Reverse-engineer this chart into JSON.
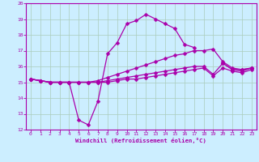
{
  "background_color": "#cceeff",
  "grid_color": "#aaccbb",
  "line_color": "#aa00aa",
  "xlabel": "Windchill (Refroidissement éolien,°C)",
  "xlim": [
    -0.5,
    23.5
  ],
  "ylim": [
    12,
    20
  ],
  "yticks": [
    12,
    13,
    14,
    15,
    16,
    17,
    18,
    19,
    20
  ],
  "xticks": [
    0,
    1,
    2,
    3,
    4,
    5,
    6,
    7,
    8,
    9,
    10,
    11,
    12,
    13,
    14,
    15,
    16,
    17,
    18,
    19,
    20,
    21,
    22,
    23
  ],
  "series": [
    {
      "x": [
        0,
        1,
        2,
        3,
        4,
        5,
        6,
        7,
        8,
        9,
        10,
        11,
        12,
        13,
        14,
        15,
        16,
        17,
        18,
        19,
        20,
        21,
        22,
        23
      ],
      "y": [
        15.2,
        15.1,
        15.0,
        15.0,
        15.0,
        12.6,
        12.3,
        13.8,
        16.8,
        17.5,
        18.7,
        18.9,
        19.3,
        19.0,
        18.7,
        18.4,
        17.4,
        17.2,
        null,
        null,
        16.2,
        15.8,
        15.8,
        15.9
      ]
    },
    {
      "x": [
        0,
        1,
        2,
        3,
        4,
        5,
        6,
        7,
        8,
        9,
        10,
        11,
        12,
        13,
        14,
        15,
        16,
        17,
        18,
        19,
        20,
        21,
        22,
        23
      ],
      "y": [
        15.2,
        15.1,
        15.0,
        15.0,
        15.0,
        15.0,
        15.0,
        15.1,
        15.3,
        15.5,
        15.7,
        15.9,
        16.1,
        16.3,
        16.5,
        16.7,
        16.8,
        17.0,
        17.0,
        17.1,
        16.3,
        15.9,
        15.8,
        15.9
      ]
    },
    {
      "x": [
        0,
        1,
        2,
        3,
        4,
        5,
        6,
        7,
        8,
        9,
        10,
        11,
        12,
        13,
        14,
        15,
        16,
        17,
        18,
        19,
        20,
        21,
        22,
        23
      ],
      "y": [
        15.2,
        15.1,
        15.0,
        15.0,
        15.0,
        15.0,
        15.0,
        15.0,
        15.1,
        15.2,
        15.3,
        15.4,
        15.5,
        15.6,
        15.7,
        15.8,
        15.9,
        16.0,
        16.0,
        15.5,
        16.2,
        15.8,
        15.7,
        15.9
      ]
    },
    {
      "x": [
        0,
        1,
        2,
        3,
        4,
        5,
        6,
        7,
        8,
        9,
        10,
        11,
        12,
        13,
        14,
        15,
        16,
        17,
        18,
        19,
        20,
        21,
        22,
        23
      ],
      "y": [
        15.2,
        15.1,
        15.0,
        15.0,
        15.0,
        15.0,
        15.0,
        15.0,
        15.0,
        15.1,
        15.2,
        15.2,
        15.3,
        15.4,
        15.5,
        15.6,
        15.7,
        15.8,
        15.9,
        15.4,
        15.9,
        15.7,
        15.6,
        15.8
      ]
    }
  ],
  "markersize": 2.5,
  "linewidth": 0.9
}
